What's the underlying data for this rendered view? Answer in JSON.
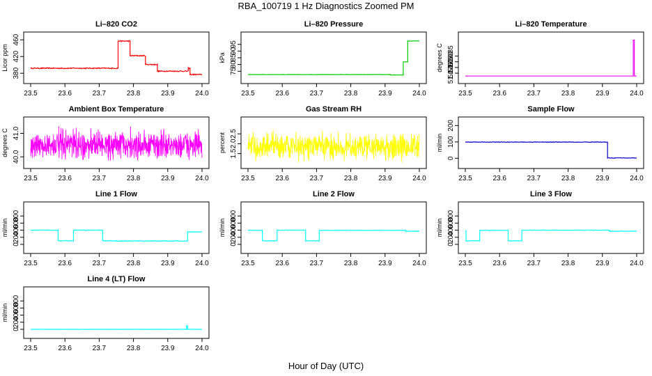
{
  "figure": {
    "title": "RBA_100719  1 Hz Diagnostics Zoomed PM",
    "xlabel": "Hour of Day (UTC)"
  },
  "chart_data": [
    {
      "type": "line",
      "title": "Li–820 CO2",
      "ylabel": "Licor ppm",
      "color": "#ff0000",
      "xlim": [
        23.5,
        24.0
      ],
      "xticks": [
        "23.5",
        "23.6",
        "23.7",
        "23.8",
        "23.9",
        "24.0"
      ],
      "ylim": [
        372,
        462
      ],
      "yticks": [
        380,
        420,
        460
      ],
      "trace": {
        "kind": "step",
        "noise": 1.2,
        "segments": [
          [
            23.5,
            23.755,
            392
          ],
          [
            23.755,
            23.79,
            457
          ],
          [
            23.79,
            23.835,
            422
          ],
          [
            23.835,
            23.87,
            401
          ],
          [
            23.87,
            23.96,
            385
          ],
          [
            23.96,
            23.965,
            392
          ],
          [
            23.965,
            24.0,
            377
          ]
        ]
      }
    },
    {
      "type": "line",
      "title": "Li–820 Pressure",
      "ylabel": "kPa",
      "color": "#00cc00",
      "xlim": [
        23.5,
        24.0
      ],
      "xticks": [
        "23.5",
        "23.6",
        "23.7",
        "23.8",
        "23.9",
        "24.0"
      ],
      "ylim": [
        71,
        99
      ],
      "yticks": [
        75,
        80,
        85,
        90,
        95
      ],
      "trace": {
        "kind": "step",
        "noise": 0.1,
        "segments": [
          [
            23.5,
            23.915,
            72.5
          ],
          [
            23.915,
            23.953,
            72.2
          ],
          [
            23.953,
            23.966,
            82
          ],
          [
            23.966,
            23.98,
            97.5
          ],
          [
            23.98,
            24.0,
            97.6
          ]
        ]
      }
    },
    {
      "type": "line",
      "title": "Li–820 Temperature",
      "ylabel": "degrees C",
      "color": "#ff00ff",
      "xlim": [
        23.5,
        24.0
      ],
      "xticks": [
        "23.5",
        "23.6",
        "23.7",
        "23.8",
        "23.9",
        "24.0"
      ],
      "ylim": [
        51.067,
        51.1
      ],
      "yticks": [
        "51.070",
        "51.075",
        "51.080",
        "51.085"
      ],
      "trace": {
        "kind": "step",
        "noise": 0,
        "segments": [
          [
            23.5,
            23.99,
            51.0675
          ],
          [
            23.99,
            23.993,
            51.099
          ],
          [
            23.993,
            24.0,
            51.0675
          ]
        ]
      }
    },
    {
      "type": "line",
      "title": "Ambient Box Temperature",
      "ylabel": "degrees C",
      "color": "#ff00ff",
      "xlim": [
        23.5,
        24.0
      ],
      "xticks": [
        "23.5",
        "23.6",
        "23.7",
        "23.8",
        "23.9",
        "24.0"
      ],
      "ylim": [
        39.8,
        41.4
      ],
      "yticks": [
        "40.0",
        "41.0"
      ],
      "trace": {
        "kind": "noise",
        "center": 40.5,
        "amp": 0.85
      }
    },
    {
      "type": "line",
      "title": "Gas Stream RH",
      "ylabel": "percent",
      "color": "#ffff00",
      "xlim": [
        23.5,
        24.0
      ],
      "xticks": [
        "23.5",
        "23.6",
        "23.7",
        "23.8",
        "23.9",
        "24.0"
      ],
      "ylim": [
        1.1,
        3.0
      ],
      "yticks": [
        "1.5",
        "2.0",
        "2.5"
      ],
      "trace": {
        "kind": "noise",
        "center": 1.85,
        "amp": 0.95
      }
    },
    {
      "type": "line",
      "title": "Sample Flow",
      "ylabel": "ml/min",
      "color": "#0000cc",
      "xlim": [
        23.5,
        24.0
      ],
      "xticks": [
        "23.5",
        "23.6",
        "23.7",
        "23.8",
        "23.9",
        "24.0"
      ],
      "ylim": [
        -20,
        210
      ],
      "yticks": [
        0,
        100,
        200
      ],
      "trace": {
        "kind": "step",
        "noise": 1.5,
        "segments": [
          [
            23.5,
            23.915,
            99
          ],
          [
            23.915,
            24.0,
            2
          ]
        ]
      }
    },
    {
      "type": "line",
      "title": "Line 1 Flow",
      "ylabel": "ml/min",
      "color": "#00ffff",
      "xlim": [
        23.5,
        24.0
      ],
      "xticks": [
        "23.5",
        "23.6",
        "23.7",
        "23.8",
        "23.9",
        "24.0"
      ],
      "ylim": [
        -60,
        1000
      ],
      "yticks": [
        0,
        200,
        400,
        600,
        800
      ],
      "trace": {
        "kind": "step",
        "noise": 8,
        "segments": [
          [
            23.5,
            23.58,
            400
          ],
          [
            23.58,
            23.625,
            100
          ],
          [
            23.625,
            23.71,
            400
          ],
          [
            23.71,
            23.75,
            100
          ],
          [
            23.75,
            23.958,
            95
          ],
          [
            23.958,
            24.0,
            350
          ]
        ]
      }
    },
    {
      "type": "line",
      "title": "Line 2 Flow",
      "ylabel": "ml/min",
      "color": "#00ffff",
      "xlim": [
        23.5,
        24.0
      ],
      "xticks": [
        "23.5",
        "23.6",
        "23.7",
        "23.8",
        "23.9",
        "24.0"
      ],
      "ylim": [
        -60,
        1000
      ],
      "yticks": [
        0,
        200,
        400,
        600,
        800
      ],
      "trace": {
        "kind": "step",
        "noise": 6,
        "segments": [
          [
            23.5,
            23.542,
            395
          ],
          [
            23.542,
            23.585,
            100
          ],
          [
            23.585,
            23.668,
            400
          ],
          [
            23.668,
            23.708,
            100
          ],
          [
            23.708,
            23.96,
            395
          ],
          [
            23.96,
            24.0,
            370
          ]
        ]
      }
    },
    {
      "type": "line",
      "title": "Line 3 Flow",
      "ylabel": "ml/min",
      "color": "#00ffff",
      "xlim": [
        23.5,
        24.0
      ],
      "xticks": [
        "23.5",
        "23.6",
        "23.7",
        "23.8",
        "23.9",
        "24.0"
      ],
      "ylim": [
        -60,
        1000
      ],
      "yticks": [
        0,
        200,
        400,
        600,
        800
      ],
      "trace": {
        "kind": "step",
        "noise": 6,
        "segments": [
          [
            23.5,
            23.502,
            380
          ],
          [
            23.502,
            23.542,
            100
          ],
          [
            23.542,
            23.625,
            395
          ],
          [
            23.625,
            23.665,
            100
          ],
          [
            23.665,
            23.92,
            400
          ],
          [
            23.92,
            24.0,
            370
          ]
        ]
      }
    },
    {
      "type": "line",
      "title": "Line 4 (LT) Flow",
      "ylabel": "ml/min",
      "color": "#00ffff",
      "xlim": [
        23.5,
        24.0
      ],
      "xticks": [
        "23.5",
        "23.6",
        "23.7",
        "23.8",
        "23.9",
        "24.0"
      ],
      "ylim": [
        -60,
        1000
      ],
      "yticks": [
        0,
        200,
        400,
        600,
        800
      ],
      "trace": {
        "kind": "step",
        "noise": 3,
        "segments": [
          [
            23.5,
            23.955,
            0
          ],
          [
            23.955,
            23.958,
            100
          ],
          [
            23.958,
            24.0,
            0
          ]
        ]
      }
    }
  ]
}
